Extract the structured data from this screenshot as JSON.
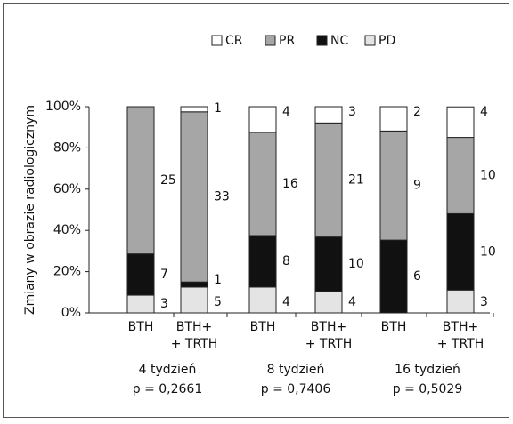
{
  "chart_data": {
    "type": "stacked_bar",
    "y_label": "Zmiany w obrazie radiologicznym",
    "categories": [
      [
        "BTH"
      ],
      [
        "BTH+",
        "+ TRTH"
      ],
      [
        "BTH"
      ],
      [
        "BTH+",
        "+ TRTH"
      ],
      [
        "BTH"
      ],
      [
        "BTH+",
        "+ TRTH"
      ]
    ],
    "groups": [
      [
        "4 tydzień",
        "p = 0,2661"
      ],
      [
        "8 tydzień",
        "p = 0,7406"
      ],
      [
        "16 tydzień",
        "p = 0,5029"
      ]
    ],
    "series": [
      {
        "name": "PD",
        "color": "#e4e4e4",
        "values": [
          8.6,
          12.5,
          12.5,
          10.5,
          0,
          11.1
        ],
        "counts": [
          3,
          5,
          4,
          4,
          null,
          3
        ]
      },
      {
        "name": "NC",
        "color": "#111111",
        "values": [
          20,
          2.5,
          25,
          26.3,
          35.3,
          37
        ],
        "counts": [
          7,
          1,
          8,
          10,
          6,
          10
        ]
      },
      {
        "name": "PR",
        "color": "#a6a6a6",
        "values": [
          71.4,
          82.5,
          50,
          55.3,
          52.9,
          37
        ],
        "counts": [
          25,
          33,
          16,
          21,
          9,
          10
        ]
      },
      {
        "name": "CR",
        "color": "#ffffff",
        "values": [
          0,
          2.5,
          12.5,
          7.9,
          11.8,
          14.8
        ],
        "counts": [
          null,
          1,
          4,
          3,
          2,
          4
        ]
      }
    ],
    "legend_order": [
      3,
      2,
      1,
      0
    ],
    "ylim": [
      0,
      100
    ],
    "yticks": [
      {
        "value": 0,
        "label": "0%"
      },
      {
        "value": 20,
        "label": "20%"
      },
      {
        "value": 40,
        "label": "40%"
      },
      {
        "value": 60,
        "label": "60%"
      },
      {
        "value": 80,
        "label": "80%"
      },
      {
        "value": 100,
        "label": "100%"
      }
    ]
  }
}
